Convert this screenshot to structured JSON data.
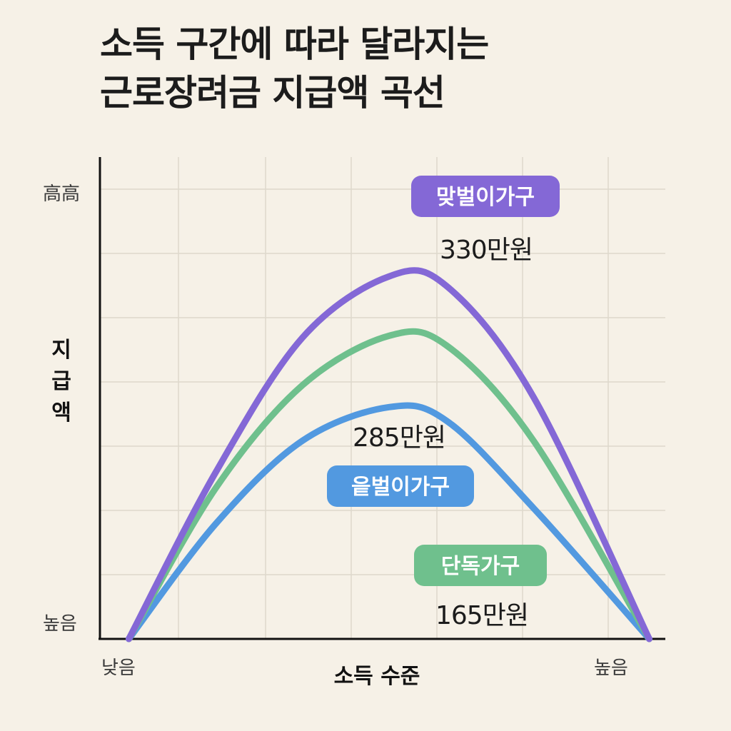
{
  "title": {
    "line1": "소득 구간에 따라 달라지는",
    "line2": "근로장려금 지급액 곡선"
  },
  "chart_data": {
    "type": "line",
    "title": "소득 구간에 따라 달라지는 근로장려금 지급액 곡선",
    "xlabel": "소득 수준",
    "ylabel": "지급액",
    "x_tick_labels": [
      "낮음",
      "높음"
    ],
    "y_tick_labels": [
      "높음",
      "高高"
    ],
    "grid": true,
    "xlim": [
      0,
      1
    ],
    "ylim": [
      0,
      1
    ],
    "series": [
      {
        "name": "맞벌이가구",
        "value_label": "330만원",
        "color": "#8468d6",
        "points": [
          [
            0.05,
            0.0
          ],
          [
            0.2,
            0.42
          ],
          [
            0.35,
            0.76
          ],
          [
            0.5,
            0.915
          ],
          [
            0.6,
            0.89
          ],
          [
            0.75,
            0.61
          ],
          [
            0.95,
            0.0
          ]
        ]
      },
      {
        "name": "단독가구",
        "value_label": "165만원",
        "color": "#6fc08d",
        "points": [
          [
            0.05,
            0.0
          ],
          [
            0.2,
            0.38
          ],
          [
            0.35,
            0.64
          ],
          [
            0.5,
            0.765
          ],
          [
            0.6,
            0.74
          ],
          [
            0.75,
            0.5
          ],
          [
            0.95,
            0.0
          ]
        ]
      },
      {
        "name": "읕벌이가구",
        "value_label": "285만원",
        "color": "#5299e0",
        "points": [
          [
            0.05,
            0.0
          ],
          [
            0.2,
            0.29
          ],
          [
            0.35,
            0.5
          ],
          [
            0.5,
            0.585
          ],
          [
            0.6,
            0.55
          ],
          [
            0.75,
            0.33
          ],
          [
            0.95,
            0.0
          ]
        ]
      }
    ]
  }
}
